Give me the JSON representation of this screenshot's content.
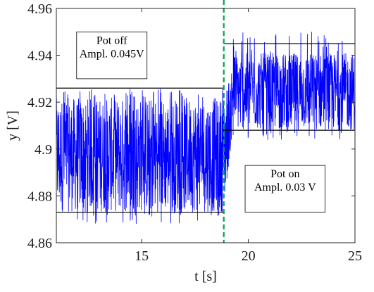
{
  "chart_data": {
    "type": "line",
    "title": "",
    "xlabel": "t [s]",
    "ylabel": "y [V]",
    "xlim": [
      11,
      25
    ],
    "ylim": [
      4.86,
      4.96
    ],
    "xticks": [
      15,
      20,
      25
    ],
    "yticks": [
      4.86,
      4.88,
      4.9,
      4.92,
      4.94,
      4.96
    ],
    "ytick_labels": [
      "4.86",
      "4.88",
      "4.9",
      "4.92",
      "4.94",
      "4.96"
    ],
    "grid": false,
    "colors": {
      "signal": "#0000ff",
      "envelope": "#000000",
      "switch": "#00a650"
    },
    "series": [
      {
        "description": "noisy measurement",
        "segments": [
          {
            "x_range": [
              11,
              18.85
            ],
            "main_band": [
              4.873,
              4.922
            ],
            "spike_max": 4.926,
            "spike_min": 4.868
          },
          {
            "x_range": [
              18.85,
              19.25
            ],
            "ramp_low": [
              4.873,
              4.908
            ],
            "ramp_high": [
              4.922,
              4.937
            ]
          },
          {
            "x_range": [
              19.25,
              25
            ],
            "main_band": [
              4.908,
              4.941
            ],
            "spike_max": 4.951,
            "spike_min": 4.904
          }
        ]
      }
    ],
    "envelopes": [
      {
        "x": [
          11,
          18.85
        ],
        "y": 4.926
      },
      {
        "x": [
          11,
          18.85
        ],
        "y": 4.873
      },
      {
        "x": [
          18.85,
          25
        ],
        "y": 4.945
      },
      {
        "x": [
          18.85,
          25
        ],
        "y": 4.908
      }
    ],
    "switch_time": 18.85,
    "annotations": [
      {
        "lines": [
          "Pot off",
          "Ampl. 0.045V"
        ],
        "x": [
          11.95,
          15.25
        ],
        "y": [
          4.93,
          4.95
        ]
      },
      {
        "lines": [
          "Pot on",
          "Ampl. 0.03 V"
        ],
        "x": [
          19.85,
          23.6
        ],
        "y": [
          4.873,
          4.893
        ]
      }
    ]
  }
}
